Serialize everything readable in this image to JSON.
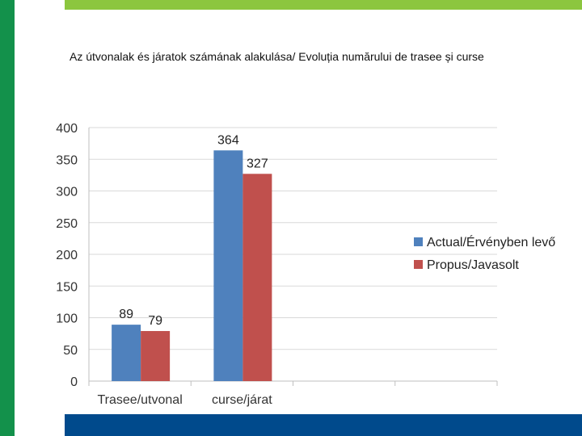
{
  "slide": {
    "title": "Az útvonalak és járatok számának alakulása/ Evoluția numărului de trasee și curse",
    "colors": {
      "left_bar": "#13914b",
      "top_bar": "#8cc63f",
      "bottom_bar": "#004a8c"
    }
  },
  "chart_data": {
    "type": "bar",
    "title": "",
    "xlabel": "",
    "ylabel": "",
    "ylim": [
      0,
      400
    ],
    "yticks": [
      0,
      50,
      100,
      150,
      200,
      250,
      300,
      350,
      400
    ],
    "grid": true,
    "legend_position": "right",
    "categories": [
      "Trasee/utvonal",
      "curse/járat"
    ],
    "series": [
      {
        "name": "Actual/Érvényben levő",
        "color": "#4f81bd",
        "values": [
          89,
          364
        ]
      },
      {
        "name": "Propus/Javasolt",
        "color": "#c0504d",
        "values": [
          79,
          327
        ]
      }
    ]
  }
}
